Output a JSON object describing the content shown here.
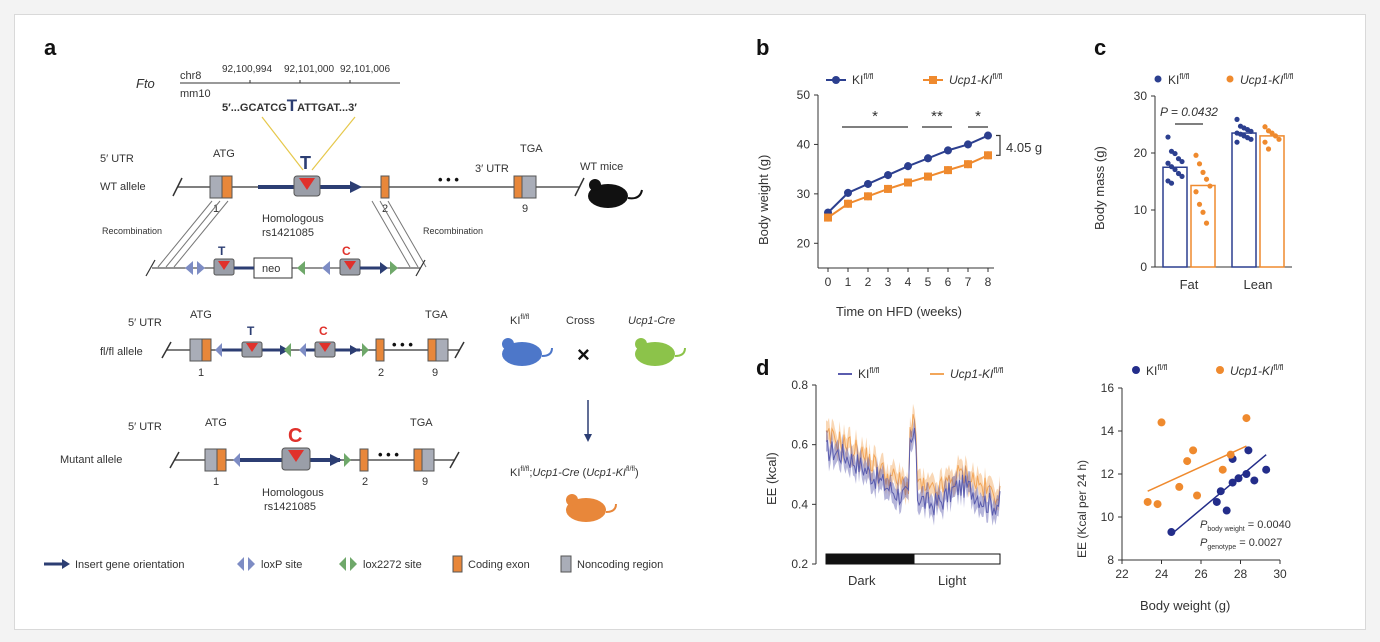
{
  "panel_a": {
    "label": "a",
    "gene": "Fto",
    "chr": "chr8",
    "coords": [
      "92,100,994",
      "92,101,000",
      "92,101,006"
    ],
    "assembly": "mm10",
    "seq_left": "5′...GCATCG",
    "seq_snp": "T",
    "seq_right": "ATTGAT...3′",
    "utr5": "5′ UTR",
    "utr3": "3′ UTR",
    "atg": "ATG",
    "tga": "TGA",
    "ellipsis": "• • •",
    "allele_T": "T",
    "allele_C": "C",
    "wt_allele": "WT allele",
    "flfl_allele": "fl/fl allele",
    "mutant_allele": "Mutant allele",
    "wt_mice": "WT mice",
    "homologous": "Homologous",
    "rsid": "rs1421085",
    "recombination": "Recombination",
    "neo": "neo",
    "exon1": "1",
    "exon2": "2",
    "exon9": "9",
    "ki": "KI",
    "ki_sup": "fl/fl",
    "cross": "Cross",
    "cross_symbol": "×",
    "ucp1cre": "Ucp1-Cre",
    "result_left": "KI",
    "result_sup1": "fl/fl",
    "result_mid": ";",
    "result_ucp1": "Ucp1-Cre",
    "result_paren_open": " (",
    "result_ucp1ki": "Ucp1-KI",
    "result_sup2": "fl/fl",
    "result_paren_close": ")",
    "legend": {
      "arrow": "Insert gene orientation",
      "loxp": "loxP site",
      "lox2272": "lox2272 site",
      "coding": "Coding exon",
      "noncoding": "Noncoding region"
    },
    "colors": {
      "exon": "#e8873a",
      "noncoding": "#a9adb8",
      "arrow": "#2c3e73",
      "loxp": "#7d8cc4",
      "lox2272": "#6fa86a",
      "snp_T": "#2c3e73",
      "snp_C": "#e0312b",
      "mouse_wt": "#111111",
      "mouse_ki": "#4d77c9",
      "mouse_cre": "#8cc34a",
      "mouse_result": "#e8873a"
    }
  },
  "panel_b": {
    "label": "b",
    "chart_data": {
      "type": "line",
      "x": [
        0,
        1,
        2,
        3,
        4,
        5,
        6,
        7,
        8
      ],
      "series": [
        {
          "name": "KI fl/fl",
          "color": "#2c3f8f",
          "values": [
            26.2,
            30.2,
            32.0,
            33.8,
            35.6,
            37.2,
            38.8,
            40.0,
            41.8
          ]
        },
        {
          "name": "Ucp1-KI fl/fl",
          "color": "#ef8a2e",
          "values": [
            25.2,
            28.0,
            29.5,
            31.0,
            32.3,
            33.5,
            34.8,
            36.0,
            37.8
          ]
        }
      ],
      "xlabel": "Time on HFD (weeks)",
      "ylabel": "Body weight (g)",
      "xticks": [
        "0",
        "1",
        "2",
        "3",
        "4",
        "5",
        "6",
        "7",
        "8"
      ],
      "yticks": [
        "20",
        "30",
        "40",
        "50"
      ],
      "ylim": [
        15,
        50
      ],
      "significance": [
        {
          "from": 0.7,
          "to": 4.0,
          "label": "*"
        },
        {
          "from": 4.7,
          "to": 6.2,
          "label": "**"
        },
        {
          "from": 7.0,
          "to": 8.0,
          "label": "*"
        }
      ],
      "difference_label": "4.05 g"
    },
    "legend": [
      {
        "text": "KI",
        "sup": "fl/fl"
      },
      {
        "text": "Ucp1-KI",
        "sup": "fl/fl"
      }
    ]
  },
  "panel_c": {
    "label": "c",
    "chart_data": {
      "type": "bar",
      "categories": [
        "Fat",
        "Lean"
      ],
      "series": [
        {
          "name": "KI fl/fl",
          "color": "#2c3f8f",
          "values": [
            17.5,
            23.5
          ],
          "points": [
            [
              22.8,
              20.3,
              19.9,
              19.0,
              18.5,
              18.2,
              17.6,
              17.1,
              16.4,
              15.9,
              15.1,
              14.7
            ],
            [
              25.9,
              24.7,
              24.4,
              24.1,
              23.8,
              23.5,
              23.3,
              23.0,
              22.7,
              22.4,
              21.9
            ]
          ]
        },
        {
          "name": "Ucp1-KI fl/fl",
          "color": "#ef8a2e",
          "values": [
            14.3,
            23.0
          ],
          "points": [
            [
              19.6,
              18.1,
              16.6,
              15.4,
              14.2,
              13.2,
              11.0,
              9.6,
              7.7
            ],
            [
              24.6,
              23.9,
              23.5,
              23.0,
              22.4,
              21.9,
              20.7
            ]
          ]
        }
      ],
      "ylabel": "Body mass (g)",
      "yticks": [
        "0",
        "10",
        "20",
        "30"
      ],
      "ylim": [
        0,
        30
      ],
      "annotation": "P = 0.0432"
    },
    "legend": [
      {
        "text": "KI",
        "sup": "fl/fl"
      },
      {
        "text": "Ucp1-KI",
        "sup": "fl/fl"
      }
    ]
  },
  "panel_d": {
    "label": "d",
    "left_chart": {
      "chart_data": {
        "type": "line",
        "ylabel": "EE (kcal)",
        "yticks": [
          "0.2",
          "0.4",
          "0.6",
          "0.8"
        ],
        "ylim": [
          0.2,
          0.8
        ],
        "phases": [
          "Dark",
          "Light"
        ],
        "series": [
          {
            "name": "KI fl/fl",
            "color": "#5a5cae"
          },
          {
            "name": "Ucp1-KI fl/fl",
            "color": "#f2a65a"
          }
        ]
      },
      "legend": [
        {
          "text": "KI",
          "sup": "fl/fl"
        },
        {
          "text": "Ucp1-KI",
          "sup": "fl/fl"
        }
      ]
    },
    "right_chart": {
      "chart_data": {
        "type": "scatter",
        "xlabel": "Body weight (g)",
        "ylabel": "EE (Kcal per 24 h)",
        "xticks": [
          "22",
          "24",
          "26",
          "28",
          "30"
        ],
        "yticks": [
          "8",
          "10",
          "12",
          "14",
          "16"
        ],
        "xlim": [
          22,
          30
        ],
        "ylim": [
          8,
          16
        ],
        "series": [
          {
            "name": "KI fl/fl",
            "color": "#232d8a",
            "points": [
              [
                24.5,
                9.3
              ],
              [
                26.8,
                10.7
              ],
              [
                27.3,
                10.3
              ],
              [
                27.0,
                11.2
              ],
              [
                27.6,
                11.6
              ],
              [
                27.9,
                11.8
              ],
              [
                28.3,
                12.0
              ],
              [
                28.7,
                11.7
              ],
              [
                27.6,
                12.7
              ],
              [
                29.3,
                12.2
              ],
              [
                28.4,
                13.1
              ]
            ]
          },
          {
            "name": "Ucp1-KI fl/fl",
            "color": "#ef8a2e",
            "points": [
              [
                23.3,
                10.7
              ],
              [
                23.8,
                10.6
              ],
              [
                24.0,
                14.4
              ],
              [
                25.3,
                12.6
              ],
              [
                25.8,
                11.0
              ],
              [
                25.6,
                13.1
              ],
              [
                27.1,
                12.2
              ],
              [
                27.5,
                12.9
              ],
              [
                28.3,
                14.6
              ],
              [
                24.9,
                11.4
              ]
            ]
          }
        ],
        "fits": [
          {
            "series": "KI fl/fl",
            "x": [
              24.5,
              29.3
            ],
            "y": [
              9.2,
              12.9
            ]
          },
          {
            "series": "Ucp1-KI fl/fl",
            "x": [
              23.3,
              28.3
            ],
            "y": [
              11.2,
              13.3
            ]
          }
        ],
        "stats": [
          {
            "label": "P",
            "sub": "body weight",
            "value": " = 0.0040"
          },
          {
            "label": "P",
            "sub": "genotype",
            "value": " = 0.0027"
          }
        ]
      },
      "legend": [
        {
          "text": "KI",
          "sup": "fl/fl"
        },
        {
          "text": "Ucp1-KI",
          "sup": "fl/fl"
        }
      ]
    }
  }
}
